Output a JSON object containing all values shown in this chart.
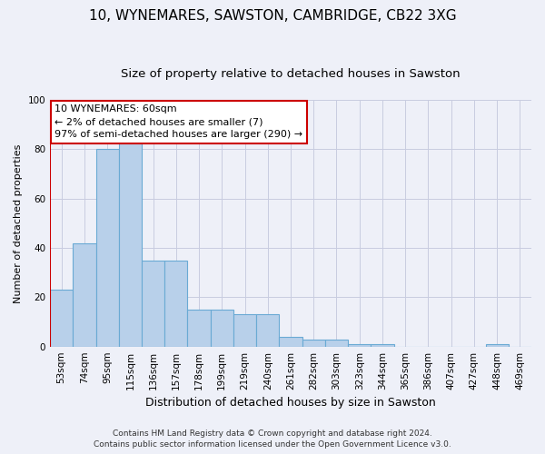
{
  "title1": "10, WYNEMARES, SAWSTON, CAMBRIDGE, CB22 3XG",
  "title2": "Size of property relative to detached houses in Sawston",
  "xlabel": "Distribution of detached houses by size in Sawston",
  "ylabel": "Number of detached properties",
  "categories": [
    "53sqm",
    "74sqm",
    "95sqm",
    "115sqm",
    "136sqm",
    "157sqm",
    "178sqm",
    "199sqm",
    "219sqm",
    "240sqm",
    "261sqm",
    "282sqm",
    "303sqm",
    "323sqm",
    "344sqm",
    "365sqm",
    "386sqm",
    "407sqm",
    "427sqm",
    "448sqm",
    "469sqm"
  ],
  "values": [
    23,
    42,
    80,
    84,
    35,
    35,
    15,
    15,
    13,
    13,
    4,
    3,
    3,
    1,
    1,
    0,
    0,
    0,
    0,
    1,
    0
  ],
  "bar_color": "#b8d0ea",
  "bar_edge_color": "#6aaad4",
  "annotation_text": "10 WYNEMARES: 60sqm\n← 2% of detached houses are smaller (7)\n97% of semi-detached houses are larger (290) →",
  "annotation_box_color": "#ffffff",
  "annotation_box_edge_color": "#cc0000",
  "marker_line_color": "#cc0000",
  "ylim": [
    0,
    100
  ],
  "yticks": [
    0,
    20,
    40,
    60,
    80,
    100
  ],
  "footer1": "Contains HM Land Registry data © Crown copyright and database right 2024.",
  "footer2": "Contains public sector information licensed under the Open Government Licence v3.0.",
  "bg_color": "#eef0f8",
  "grid_color": "#c8cce0",
  "title1_fontsize": 11,
  "title2_fontsize": 9.5,
  "xlabel_fontsize": 9,
  "ylabel_fontsize": 8,
  "tick_fontsize": 7.5,
  "annotation_fontsize": 8,
  "footer_fontsize": 6.5
}
